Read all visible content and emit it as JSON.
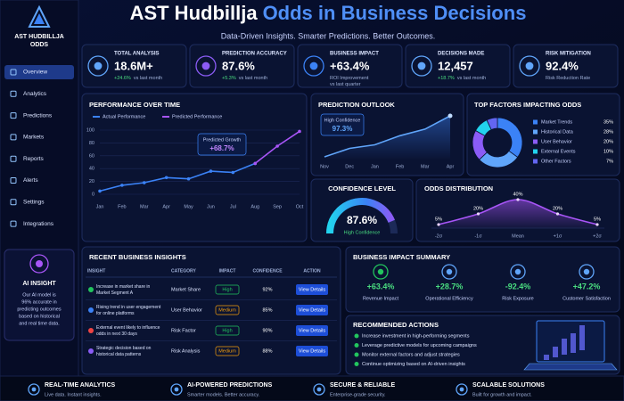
{
  "sidebar": {
    "logo": [
      "AST HUDBILLJA",
      "ODDS"
    ],
    "nav": [
      "Overview",
      "Analytics",
      "Predictions",
      "Markets",
      "Reports",
      "Alerts",
      "Settings",
      "Integrations"
    ],
    "active": 0,
    "insight": {
      "title": "AI INSIGHT",
      "text": [
        "Our AI model is",
        "96% accurate in",
        "predicting outcomes",
        "based on historical",
        "and real time data."
      ]
    }
  },
  "header": {
    "title": [
      "AST Hudbillja",
      "Odds in Business Decisions"
    ],
    "subtitle": "Data-Driven Insights. Smarter Predictions. Better Outcomes."
  },
  "kpis": [
    {
      "label": "TOTAL ANALYSIS",
      "value": "18.6M+",
      "delta": "+24.6%",
      "note": [
        "vs last month"
      ]
    },
    {
      "label": "PREDICTION ACCURACY",
      "value": "87.6%",
      "delta": "+5.3%",
      "note": [
        "vs last month"
      ]
    },
    {
      "label": "BUSINESS IMPACT",
      "value": "+63.4%",
      "note": [
        "ROI Improvement",
        "vs last quarter"
      ]
    },
    {
      "label": "DECISIONS MADE",
      "value": "12,457",
      "delta": "+18.7%",
      "note": [
        "vs last month"
      ]
    },
    {
      "label": "RISK MITIGATION",
      "value": "92.4%",
      "note": [
        "Risk Reduction Rate"
      ]
    }
  ],
  "performance": {
    "type": "line",
    "title": "PERFORMANCE OVER TIME",
    "categories": [
      "Jan",
      "Feb",
      "Mar",
      "Apr",
      "May",
      "Jun",
      "Jul",
      "Aug",
      "Sep",
      "Oct"
    ],
    "series": [
      {
        "name": "Actual Performance",
        "color": "#3b82f6",
        "values": [
          5,
          14,
          18,
          26,
          24,
          36,
          34,
          48,
          null,
          null
        ]
      },
      {
        "name": "Predicted Performance",
        "color": "#a855f7",
        "values": [
          null,
          null,
          null,
          null,
          null,
          null,
          null,
          48,
          75,
          98
        ]
      }
    ],
    "ylim": [
      0,
      100
    ],
    "yticks": [
      0,
      20,
      40,
      60,
      80,
      100
    ],
    "grid": true,
    "annotation": {
      "label": "Predicted Growth",
      "value": "+68.7%"
    }
  },
  "outlook": {
    "type": "line",
    "title": "PREDICTION OUTLOOK",
    "categories": [
      "Nov",
      "Dec",
      "Jan",
      "Feb",
      "Mar",
      "Apr"
    ],
    "values": [
      20,
      34,
      40,
      55,
      66,
      88
    ],
    "color": "#60a5fa",
    "annotation": {
      "label": "High Confidence",
      "value": "97.3%"
    }
  },
  "factors": {
    "type": "pie",
    "title": "TOP FACTORS IMPACTING ODDS",
    "categories": [
      "Market Trends",
      "Historical Data",
      "User Behavior",
      "External Events",
      "Other Factors"
    ],
    "values": [
      35,
      28,
      20,
      10,
      7
    ],
    "value_labels": [
      "35%",
      "28%",
      "20%",
      "10%",
      "7%"
    ],
    "colors": [
      "#3b82f6",
      "#60a5fa",
      "#8b5cf6",
      "#22d3ee",
      "#6366f1"
    ]
  },
  "confidence": {
    "type": "gauge",
    "title": "CONFIDENCE LEVEL",
    "value": 87.6,
    "value_label": "87.6%",
    "ylim": [
      0,
      100
    ],
    "label": "High Confidence"
  },
  "distribution": {
    "type": "line",
    "title": "ODDS DISTRIBUTION",
    "categories": [
      "-2σ",
      "-1σ",
      "Mean",
      "+1σ",
      "+2σ"
    ],
    "values": [
      5,
      20,
      40,
      20,
      5
    ],
    "value_labels": [
      "5%",
      "20%",
      "40%",
      "20%",
      "5%"
    ],
    "color": "#a855f7"
  },
  "insights": {
    "title": "RECENT BUSINESS INSIGHTS",
    "columns": [
      "INSIGHT",
      "CATEGORY",
      "IMPACT",
      "CONFIDENCE",
      "ACTION"
    ],
    "rows": [
      [
        [
          "Increase in market share in",
          "Market Segment A"
        ],
        "Market Share",
        "High",
        "92%",
        "View Details"
      ],
      [
        [
          "Rising trend in user engagement",
          "for online platforms"
        ],
        "User Behavior",
        "Medium",
        "85%",
        "View Details"
      ],
      [
        [
          "External event likely to influence",
          "odds in next 30 days"
        ],
        "Risk Factor",
        "High",
        "90%",
        "View Details"
      ],
      [
        [
          "Strategic decision based on",
          "historical data patterns"
        ],
        "Risk Analysis",
        "Medium",
        "88%",
        "View Details"
      ]
    ],
    "badge_colors": [
      "#22c55e",
      "#f59e0b",
      "#22c55e",
      "#f59e0b"
    ],
    "icon_colors": [
      "#22c55e",
      "#3b82f6",
      "#ef4444",
      "#8b5cf6"
    ]
  },
  "impact": {
    "title": "BUSINESS IMPACT SUMMARY",
    "items": [
      {
        "value": "+63.4%",
        "label": "Revenue Impact"
      },
      {
        "value": "+28.7%",
        "label": "Operational Efficiency"
      },
      {
        "value": "-92.4%",
        "label": "Risk Exposure"
      },
      {
        "value": "+47.2%",
        "label": "Customer Satisfaction"
      }
    ]
  },
  "actions": {
    "title": "RECOMMENDED ACTIONS",
    "items": [
      "Increase investment in high-performing segments",
      "Leverage predictive models for upcoming campaigns",
      "Monitor external factors and adjust strategies",
      "Continue optimizing based on AI-driven insights"
    ]
  },
  "footer": [
    {
      "title": "REAL-TIME ANALYTICS",
      "text": "Live data. Instant insights."
    },
    {
      "title": "AI-POWERED PREDICTIONS",
      "text": "Smarter models. Better accuracy."
    },
    {
      "title": "SECURE & RELIABLE",
      "text": "Enterprise-grade security."
    },
    {
      "title": "SCALABLE SOLUTIONS",
      "text": "Built for growth and impact."
    }
  ]
}
